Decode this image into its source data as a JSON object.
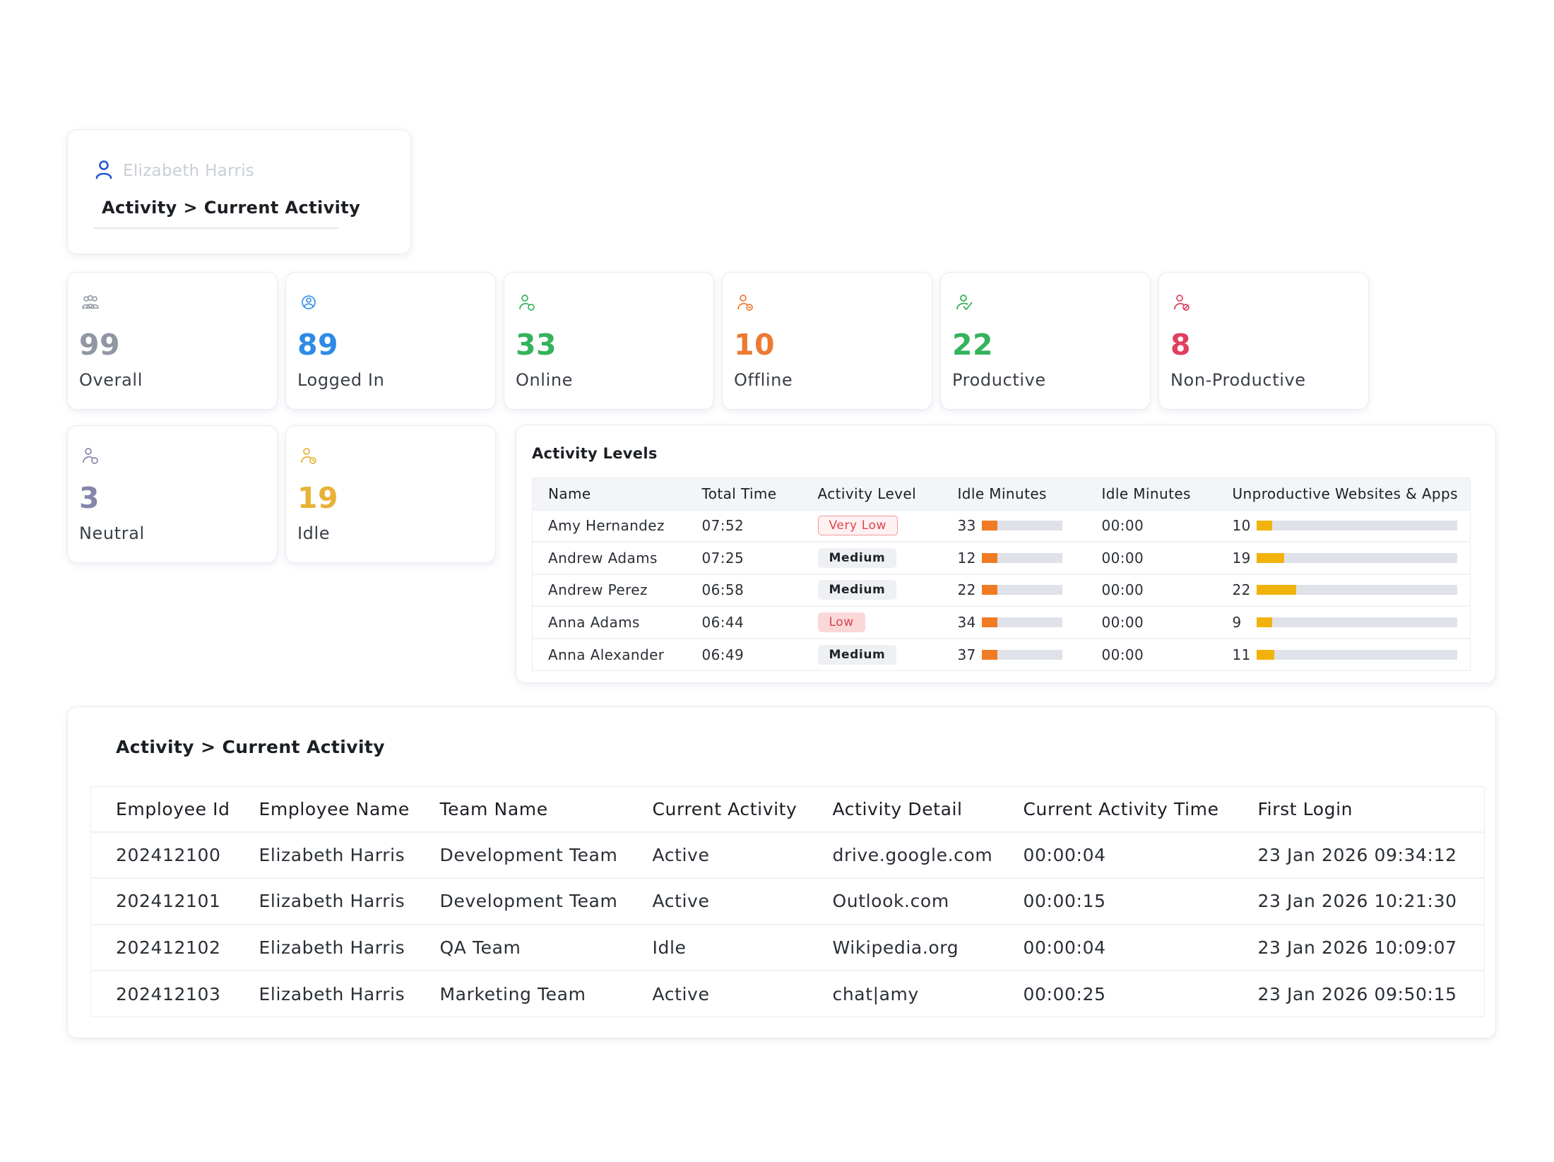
{
  "user_card": {
    "user_name": "Elizabeth Harris",
    "breadcrumb": "Activity > Current Activity"
  },
  "stats": [
    {
      "value": "99",
      "label": "Overall",
      "color": "#9097a3",
      "icon": "users-group-icon"
    },
    {
      "value": "89",
      "label": "Logged In",
      "color": "#2d8be6",
      "icon": "user-login-icon"
    },
    {
      "value": "33",
      "label": "Online",
      "color": "#33b35b",
      "icon": "user-online-icon"
    },
    {
      "value": "10",
      "label": "Offline",
      "color": "#ee7a31",
      "icon": "user-offline-icon"
    },
    {
      "value": "22",
      "label": "Productive",
      "color": "#33b35b",
      "icon": "user-productive-icon"
    },
    {
      "value": "8",
      "label": "Non-Productive",
      "color": "#e03f5e",
      "icon": "user-non-productive-icon"
    },
    {
      "value": "3",
      "label": "Neutral",
      "color": "#8585ab",
      "icon": "user-neutral-icon"
    },
    {
      "value": "19",
      "label": "Idle",
      "color": "#e7b236",
      "icon": "user-idle-icon"
    }
  ],
  "activity_levels": {
    "title": "Activity Levels",
    "headers": [
      "Name",
      "Total Time",
      "Activity Level",
      "Idle Minutes",
      "Idle Minutes",
      "Unproductive Websites & Apps"
    ],
    "rows": [
      {
        "name": "Amy Hernandez",
        "total_time": "07:52",
        "level": "Very Low",
        "level_style": "vlow",
        "idle_minutes": "33",
        "idle_fraction": 0.2,
        "idle_time": "00:00",
        "unproductive": "10",
        "unproductive_fraction": 0.08
      },
      {
        "name": "Andrew Adams",
        "total_time": "07:25",
        "level": "Medium",
        "level_style": "med",
        "idle_minutes": "12",
        "idle_fraction": 0.2,
        "idle_time": "00:00",
        "unproductive": "19",
        "unproductive_fraction": 0.14
      },
      {
        "name": "Andrew Perez",
        "total_time": "06:58",
        "level": "Medium",
        "level_style": "med",
        "idle_minutes": "22",
        "idle_fraction": 0.2,
        "idle_time": "00:00",
        "unproductive": "22",
        "unproductive_fraction": 0.2
      },
      {
        "name": "Anna Adams",
        "total_time": "06:44",
        "level": "Low",
        "level_style": "low",
        "idle_minutes": "34",
        "idle_fraction": 0.2,
        "idle_time": "00:00",
        "unproductive": "9",
        "unproductive_fraction": 0.08
      },
      {
        "name": "Anna Alexander",
        "total_time": "06:49",
        "level": "Medium",
        "level_style": "med",
        "idle_minutes": "37",
        "idle_fraction": 0.2,
        "idle_time": "00:00",
        "unproductive": "11",
        "unproductive_fraction": 0.09
      }
    ]
  },
  "current_activity": {
    "title": "Activity > Current Activity",
    "headers": [
      "Employee Id",
      "Employee Name",
      "Team Name",
      "Current Activity",
      "Activity Detail",
      "Current Activity Time",
      "First Login"
    ],
    "rows": [
      [
        "202412100",
        "Elizabeth Harris",
        "Development Team",
        "Active",
        "drive.google.com",
        "00:00:04",
        "23 Jan 2026 09:34:12"
      ],
      [
        "202412101",
        "Elizabeth Harris",
        "Development Team",
        "Active",
        "Outlook.com",
        "00:00:15",
        "23 Jan 2026 10:21:30"
      ],
      [
        "202412102",
        "Elizabeth Harris",
        "QA Team",
        "Idle",
        "Wikipedia.org",
        "00:00:04",
        "23 Jan 2026 10:09:07"
      ],
      [
        "202412103",
        "Elizabeth Harris",
        "Marketing Team",
        "Active",
        "chat|amy",
        "00:00:25",
        "23 Jan 2026 09:50:15"
      ]
    ]
  },
  "colors": {
    "idle_bar": "#f07b22",
    "unproductive_bar": "#f1b20c",
    "bar_track": "#dfe2e9",
    "user_icon": "#2356d6"
  }
}
